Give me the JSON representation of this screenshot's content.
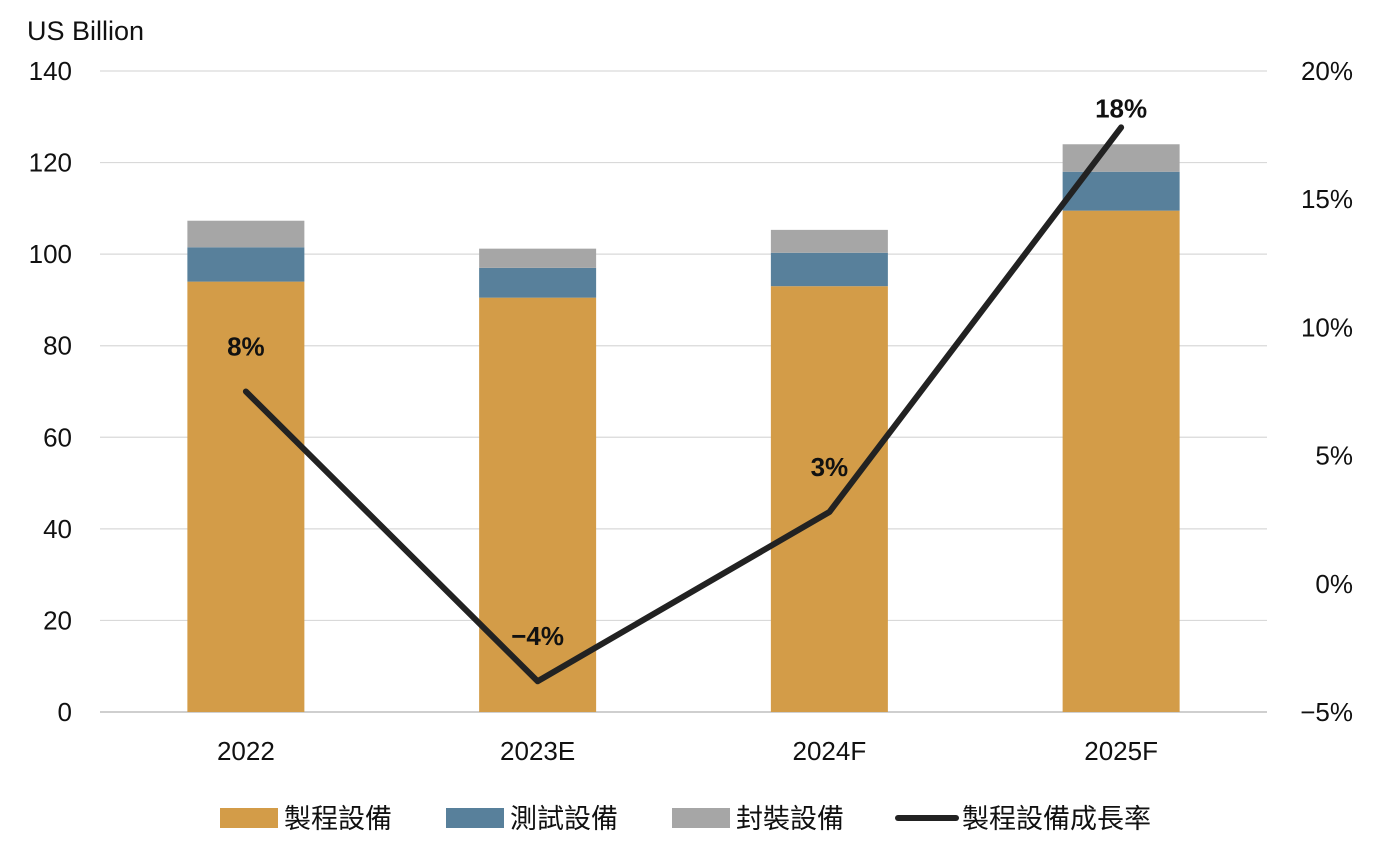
{
  "chart_data": {
    "type": "bar",
    "stacked": true,
    "categories": [
      "2022",
      "2023E",
      "2024F",
      "2025F"
    ],
    "series": [
      {
        "name": "製程設備",
        "values": [
          94,
          90.5,
          93,
          109.5
        ],
        "color": "#D39C48"
      },
      {
        "name": "測試設備",
        "values": [
          7.5,
          6.5,
          7.3,
          8.5
        ],
        "color": "#58809B"
      },
      {
        "name": "封裝設備",
        "values": [
          5.8,
          4.2,
          5.0,
          6.0
        ],
        "color": "#A6A6A6"
      }
    ],
    "line_series": {
      "name": "製程設備成長率",
      "axis": "right",
      "values": [
        7.5,
        -3.8,
        2.8,
        17.8
      ],
      "labels": [
        "8%",
        "−4%",
        "3%",
        "18%"
      ],
      "color": "#222222"
    },
    "y_left": {
      "label": "US Billion",
      "range": [
        0,
        140
      ],
      "ticks": [
        "0",
        "20",
        "40",
        "60",
        "80",
        "100",
        "120",
        "140"
      ]
    },
    "y_right": {
      "range": [
        -5,
        20
      ],
      "ticks": [
        "−5%",
        "0%",
        "5%",
        "10%",
        "15%",
        "20%"
      ]
    },
    "grid": true,
    "legend_position": "bottom"
  }
}
